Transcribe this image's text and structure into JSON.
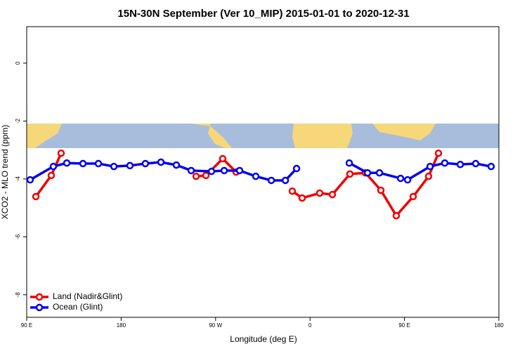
{
  "chart_data": {
    "type": "line",
    "title": "15N-30N September (Ver 10_MIP)   2015-01-01 to 2020-12-31",
    "x_label": "Longitude (deg E)",
    "y_label": "XCO2 - MLO trend (ppm)",
    "xlim": [
      90,
      540
    ],
    "ylim": [
      -8.78,
      1.26
    ],
    "xticks": [
      {
        "value": 90,
        "label": "90 E"
      },
      {
        "value": 180,
        "label": "180"
      },
      {
        "value": 270,
        "label": "90 W"
      },
      {
        "value": 360,
        "label": "0"
      },
      {
        "value": 450,
        "label": "90 E"
      },
      {
        "value": 540,
        "label": "180"
      }
    ],
    "yticks": [
      0,
      -2,
      -4,
      -6,
      -8
    ],
    "legend": "bottom-left",
    "series": [
      {
        "name": "Land (Nadir&Glint)",
        "color": "#ee0000",
        "x": [
          98.7,
          113.4,
          122.8,
          null,
          251.4,
          260.8,
          276.8,
          289.5,
          null,
          343.1,
          352.5,
          369.2,
          381.3,
          398.0,
          412.8,
          427.5,
          442.2,
          458.3,
          473.0,
          482.4
        ],
        "values": [
          -4.61,
          -3.88,
          -3.11,
          null,
          -3.91,
          -3.88,
          -3.3,
          -3.76,
          null,
          -4.42,
          -4.66,
          -4.49,
          -4.54,
          -3.83,
          -3.79,
          -4.39,
          -5.27,
          -4.61,
          -3.91,
          -3.11
        ]
      },
      {
        "name": "Ocean (Glint)",
        "color": "#0000ee",
        "x": [
          93.3,
          115.4,
          128.2,
          143.6,
          158.3,
          173.1,
          188.4,
          203.1,
          217.9,
          232.6,
          246.7,
          266.1,
          278.2,
          292.9,
          308.3,
          323.1,
          336.5,
          347.2,
          null,
          397.4,
          414.8,
          426.2,
          446.3,
          453.0,
          474.4,
          488.4,
          503.2,
          517.9,
          532.6
        ],
        "values": [
          -4.03,
          -3.57,
          -3.45,
          -3.47,
          -3.47,
          -3.57,
          -3.54,
          -3.47,
          -3.42,
          -3.52,
          -3.71,
          -3.74,
          -3.71,
          -3.71,
          -3.91,
          -4.05,
          -4.05,
          -3.64,
          null,
          -3.45,
          -3.79,
          -3.79,
          -3.98,
          -4.03,
          -3.57,
          -3.45,
          -3.5,
          -3.47,
          -3.57
        ]
      }
    ]
  }
}
